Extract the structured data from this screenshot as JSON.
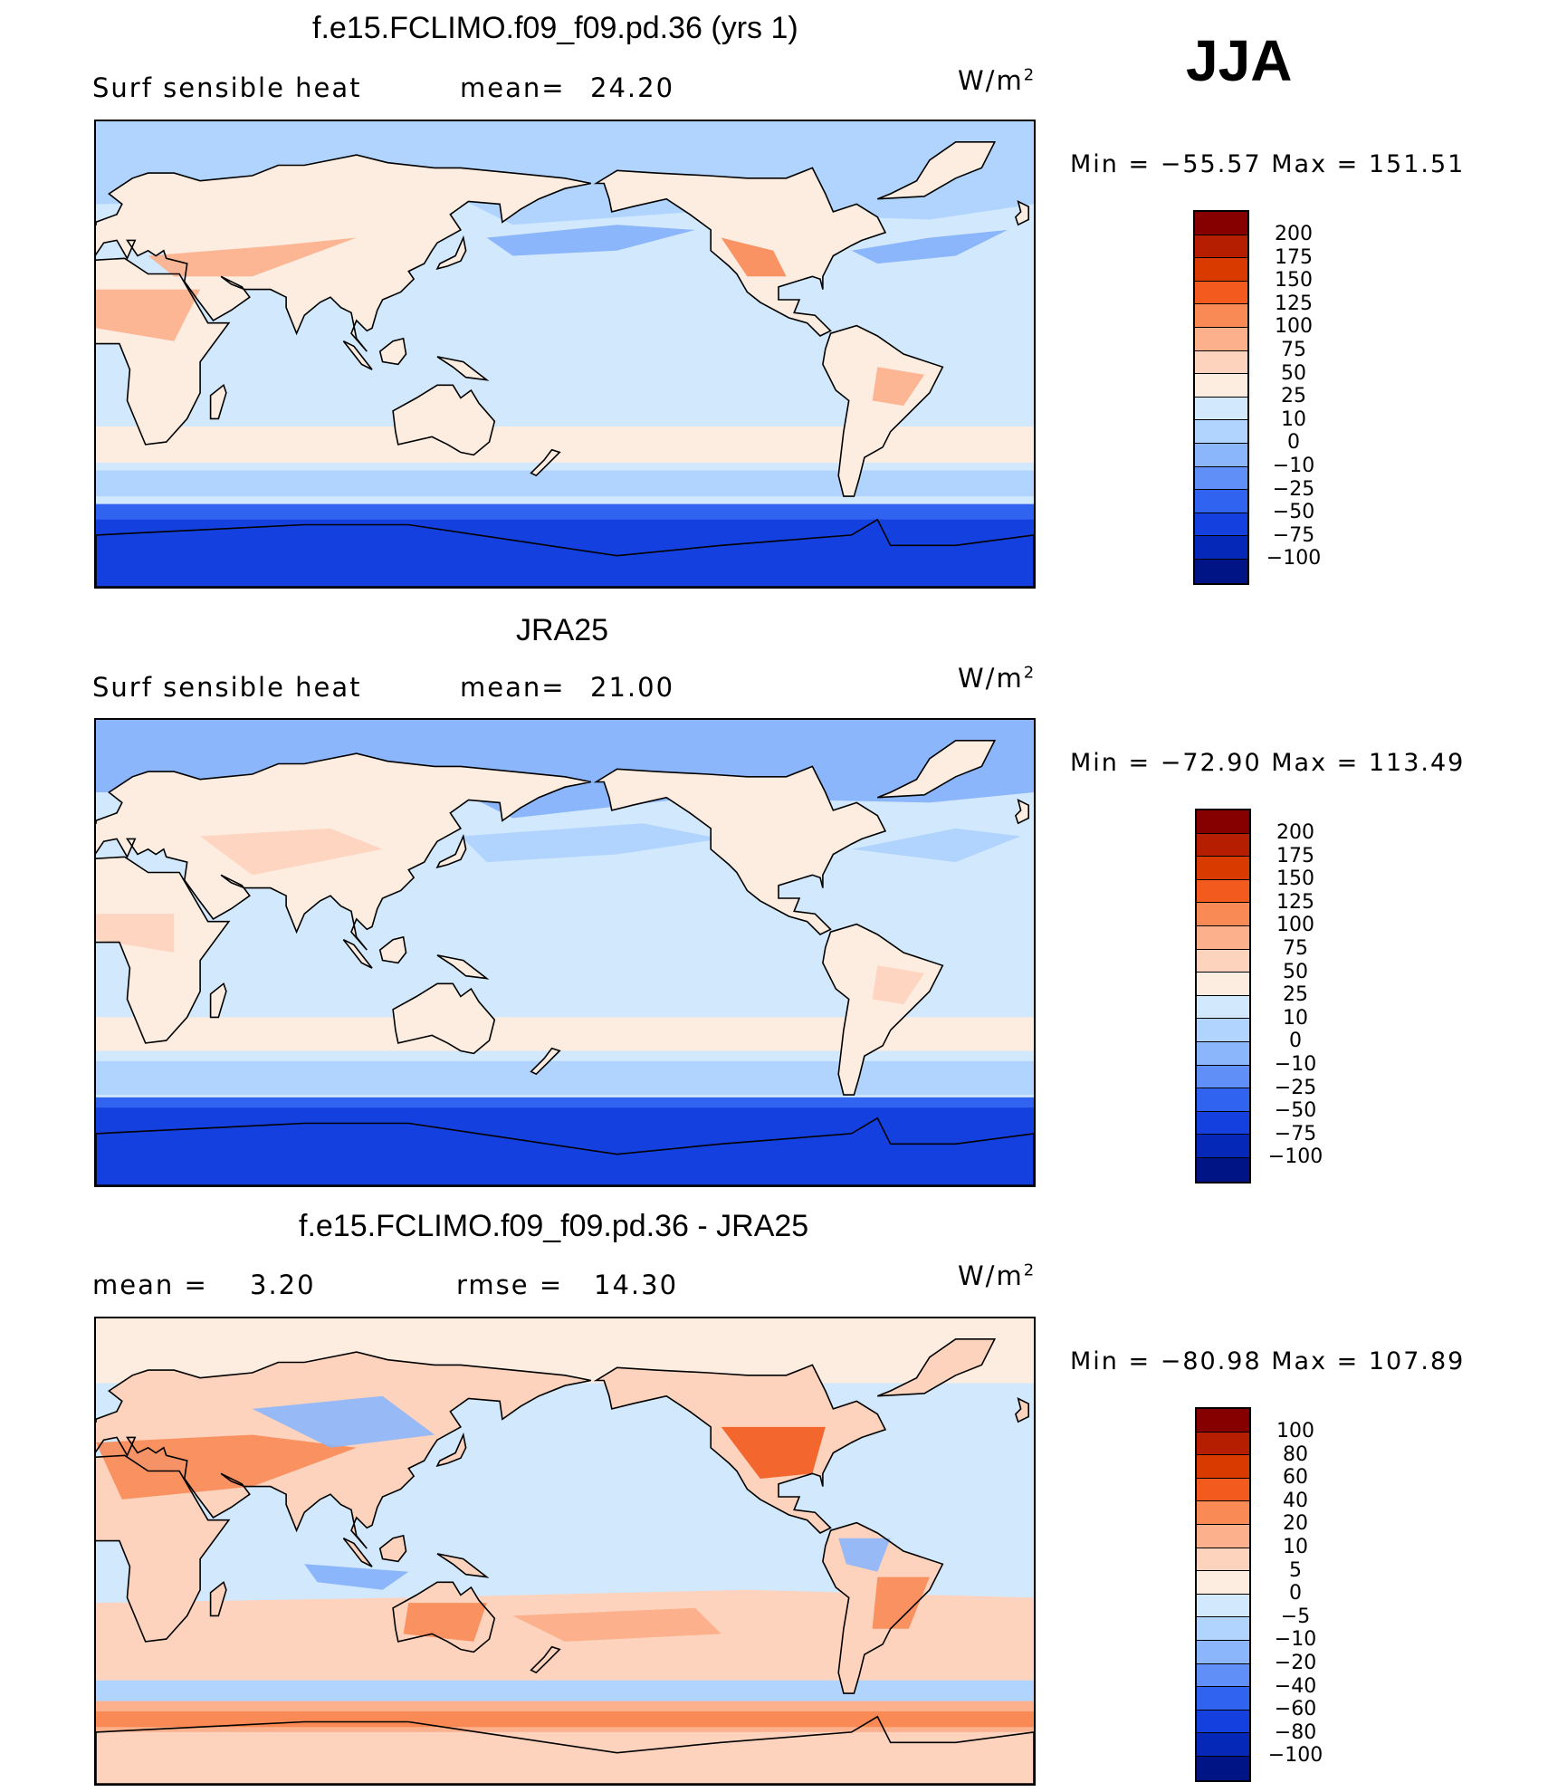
{
  "season": "JJA",
  "panels": [
    {
      "title": "f.e15.FCLIMO.f09_f09.pd.36 (yrs 1)",
      "left_label": "Surf  sensible  heat",
      "stat_label": "mean=",
      "stat_value": "24.20",
      "units_base": "W/m",
      "units_exp": "2",
      "min_label": "Min",
      "min_value": "−55.57",
      "max_label": "Max",
      "max_value": "151.51",
      "colorbar_labels": [
        "200",
        "175",
        "150",
        "125",
        "100",
        "75",
        "50",
        "25",
        "10",
        "0",
        "−10",
        "−25",
        "−50",
        "−75",
        "−100"
      ],
      "colorbar_colors": [
        "#870000",
        "#b51e00",
        "#d93a00",
        "#f25a1e",
        "#fa8a55",
        "#fcb08c",
        "#fdd3bd",
        "#fdece0",
        "#d2e8fd",
        "#b0d4fd",
        "#8cb6fb",
        "#5f8ff7",
        "#2f63f0",
        "#1440e0",
        "#0628b8",
        "#001486"
      ]
    },
    {
      "title": "JRA25",
      "left_label": "Surf  sensible  heat",
      "stat_label": "mean=",
      "stat_value": "21.00",
      "units_base": "W/m",
      "units_exp": "2",
      "min_label": "Min",
      "min_value": "−72.90",
      "max_label": "Max",
      "max_value": "113.49",
      "colorbar_labels": [
        "200",
        "175",
        "150",
        "125",
        "100",
        "75",
        "50",
        "25",
        "10",
        "0",
        "−10",
        "−25",
        "−50",
        "−75",
        "−100"
      ],
      "colorbar_colors": [
        "#870000",
        "#b51e00",
        "#d93a00",
        "#f25a1e",
        "#fa8a55",
        "#fcb08c",
        "#fdd3bd",
        "#fdece0",
        "#d2e8fd",
        "#b0d4fd",
        "#8cb6fb",
        "#5f8ff7",
        "#2f63f0",
        "#1440e0",
        "#0628b8",
        "#001486"
      ]
    },
    {
      "title": "f.e15.FCLIMO.f09_f09.pd.36 - JRA25",
      "left_label": "mean  =",
      "left_value": "3.20",
      "stat_label": "rmse  =",
      "stat_value": "14.30",
      "units_base": "W/m",
      "units_exp": "2",
      "min_label": "Min",
      "min_value": "−80.98",
      "max_label": "Max",
      "max_value": "107.89",
      "colorbar_labels": [
        "100",
        "80",
        "60",
        "40",
        "20",
        "10",
        "5",
        "0",
        "−5",
        "−10",
        "−20",
        "−40",
        "−60",
        "−80",
        "−100"
      ],
      "colorbar_colors": [
        "#870000",
        "#b51e00",
        "#d93a00",
        "#f25a1e",
        "#fa8a55",
        "#fcb08c",
        "#fdd3bd",
        "#fdece0",
        "#d2e8fd",
        "#b0d4fd",
        "#8cb6fb",
        "#5f8ff7",
        "#2f63f0",
        "#1440e0",
        "#0628b8",
        "#001486"
      ]
    }
  ],
  "map_colors": {
    "ocean_light": "#d2e8fd",
    "ocean_mid": "#b0d4fd",
    "cool": "#8cb6fb",
    "cold": "#2f63f0",
    "deep_cold": "#1440e0",
    "land_light": "#fdece0",
    "land_mid": "#fdd3bd",
    "land_warm": "#fcb08c",
    "land_hot": "#fa8a55",
    "land_very_hot": "#f25a1e"
  }
}
